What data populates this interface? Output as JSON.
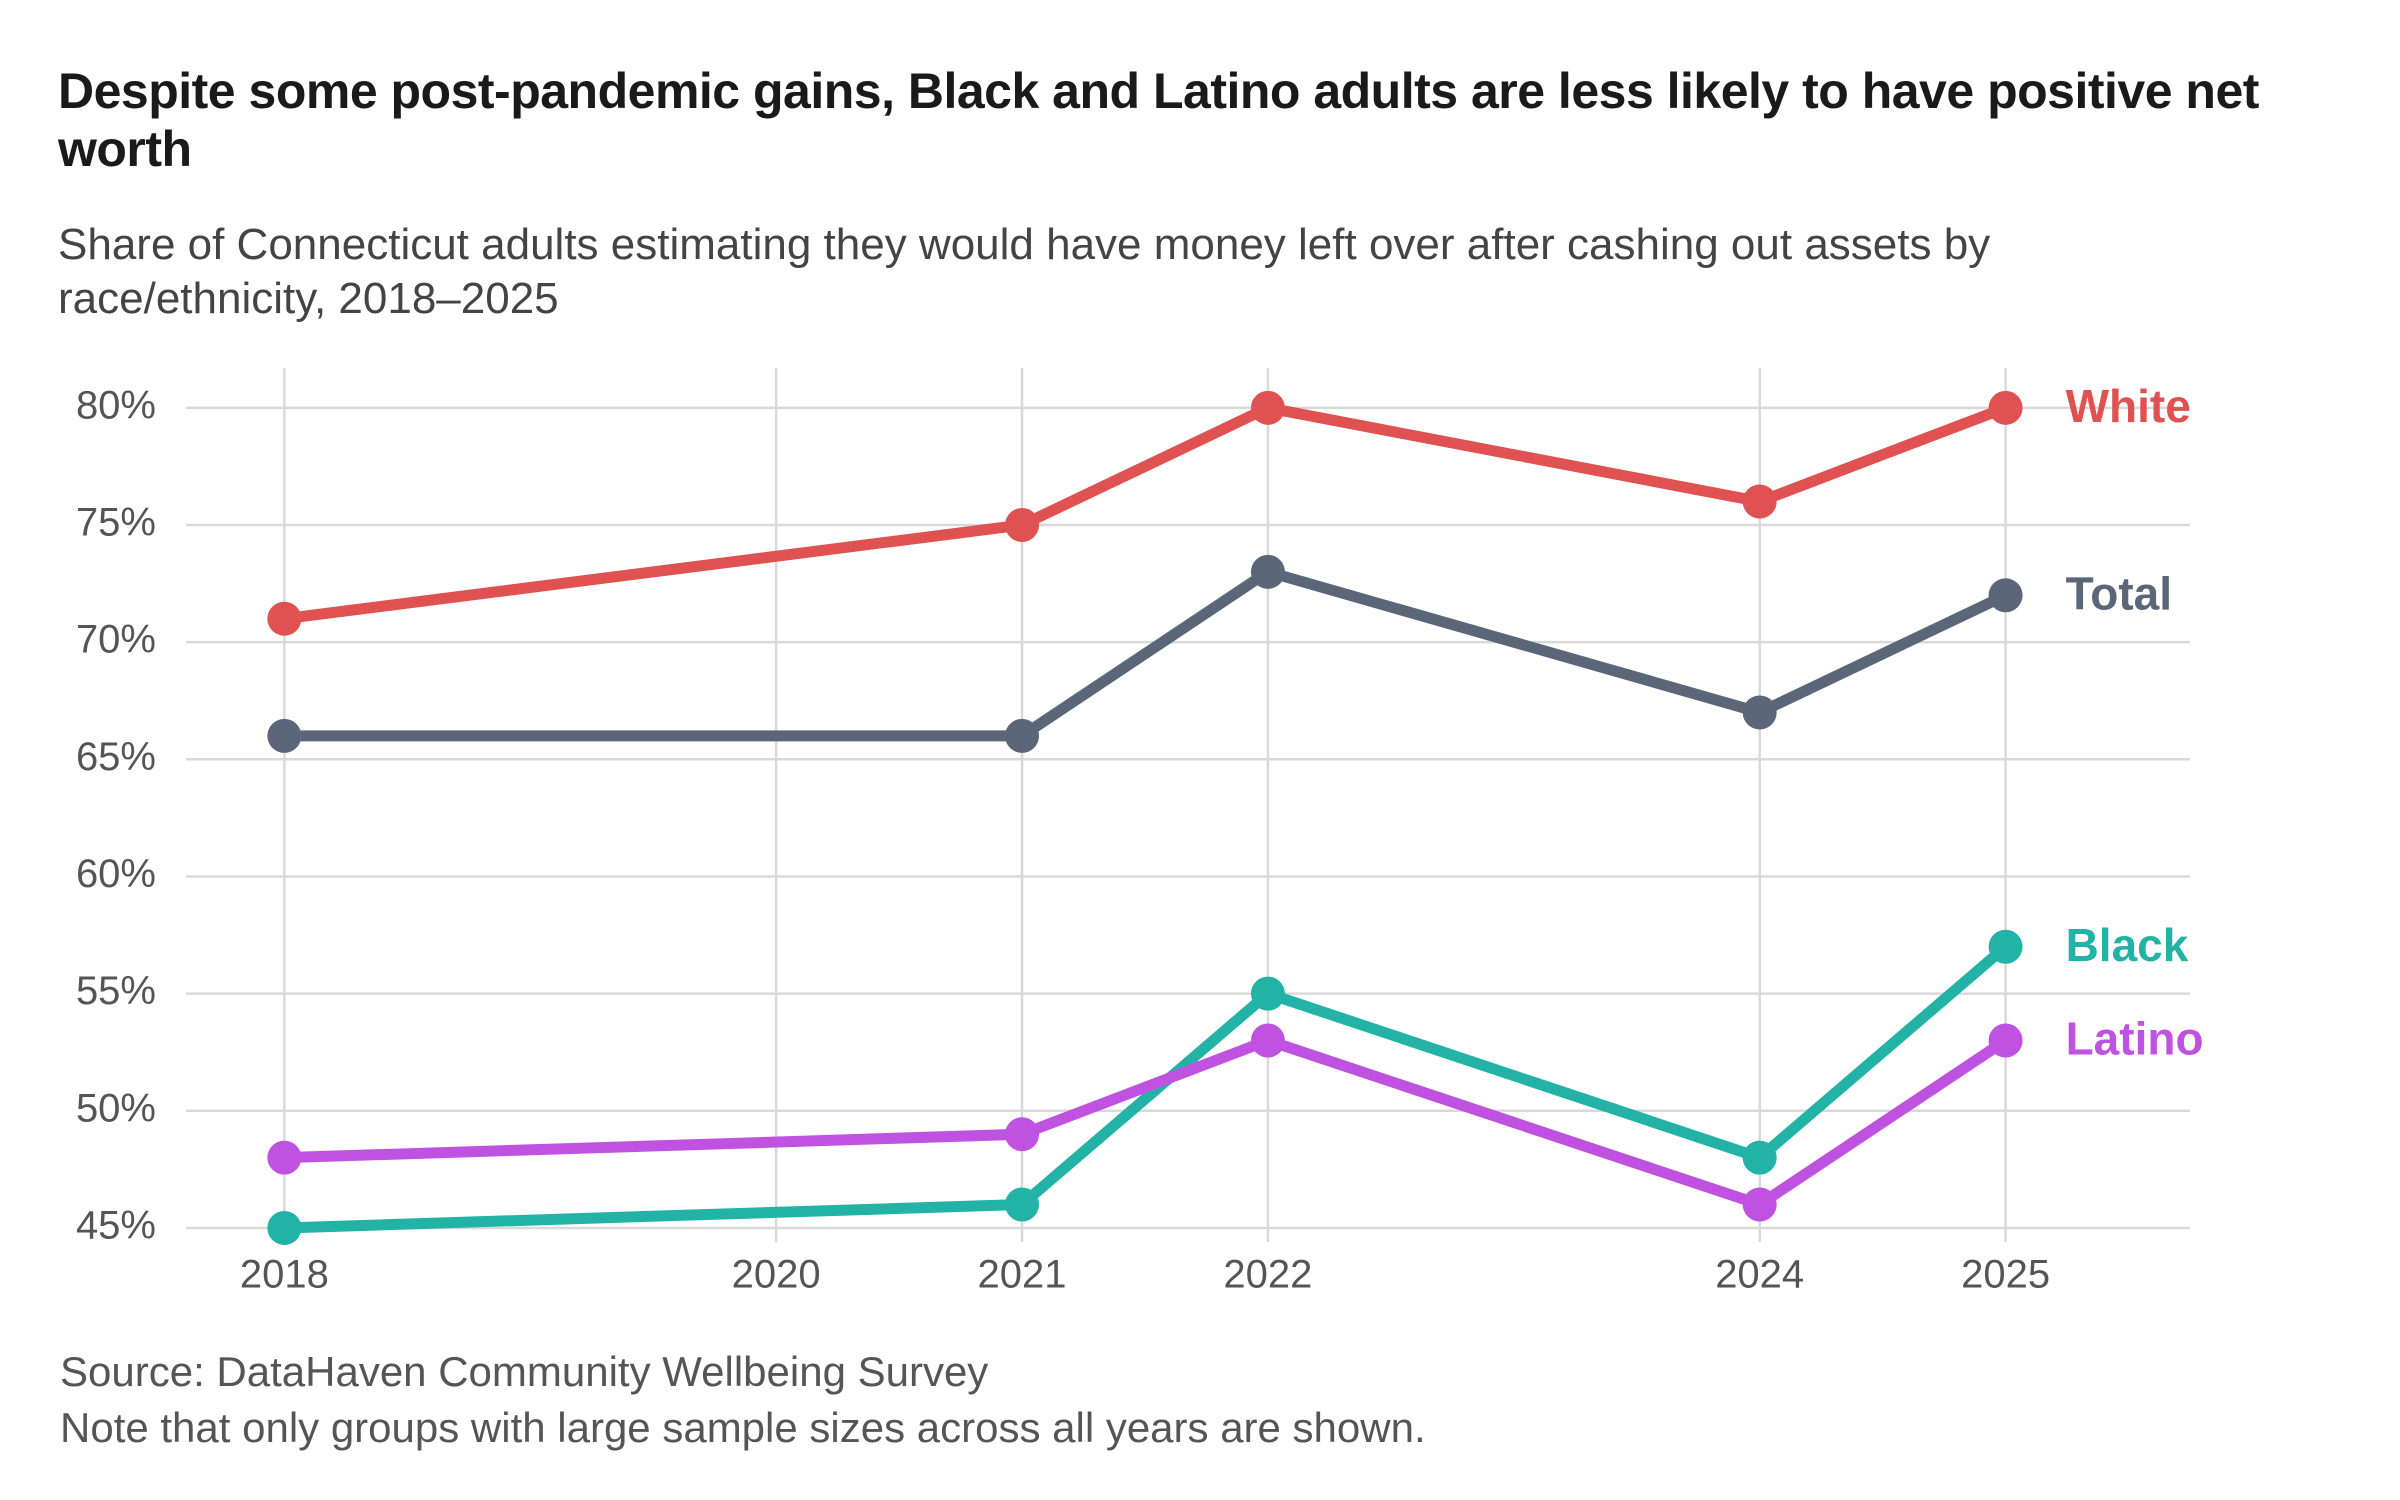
{
  "chart_data": {
    "type": "line",
    "title": "Despite some post-pandemic gains, Black and Latino adults are less likely to have positive net worth",
    "subtitle": "Share of Connecticut adults estimating they would have money left over after cashing out assets by race/ethnicity, 2018–2025",
    "source": "Source: DataHaven Community Wellbeing Survey",
    "note": "Note that only groups with large sample sizes across all years are shown.",
    "x": [
      2018,
      2021,
      2022,
      2024,
      2025
    ],
    "series": [
      {
        "name": "White",
        "color": "#e05151",
        "values": [
          71,
          75,
          80,
          76,
          80
        ]
      },
      {
        "name": "Total",
        "color": "#5b6778",
        "values": [
          66,
          66,
          73,
          67,
          72
        ]
      },
      {
        "name": "Black",
        "color": "#22b3a6",
        "values": [
          45,
          46,
          55,
          48,
          57
        ]
      },
      {
        "name": "Latino",
        "color": "#bf52e0",
        "values": [
          48,
          49,
          53,
          46,
          53
        ]
      }
    ],
    "xlim": [
      2017.6,
      2025.75
    ],
    "xticks": [
      2018,
      2020,
      2021,
      2022,
      2024,
      2025
    ],
    "ylim": [
      44.4,
      81.7
    ],
    "yticks": [
      {
        "value": 45,
        "label": "45%"
      },
      {
        "value": 50,
        "label": "50%"
      },
      {
        "value": 55,
        "label": "55%"
      },
      {
        "value": 60,
        "label": "60%"
      },
      {
        "value": 65,
        "label": "65%"
      },
      {
        "value": 70,
        "label": "70%"
      },
      {
        "value": 75,
        "label": "75%"
      },
      {
        "value": 80,
        "label": "80%"
      }
    ],
    "grid": true
  }
}
